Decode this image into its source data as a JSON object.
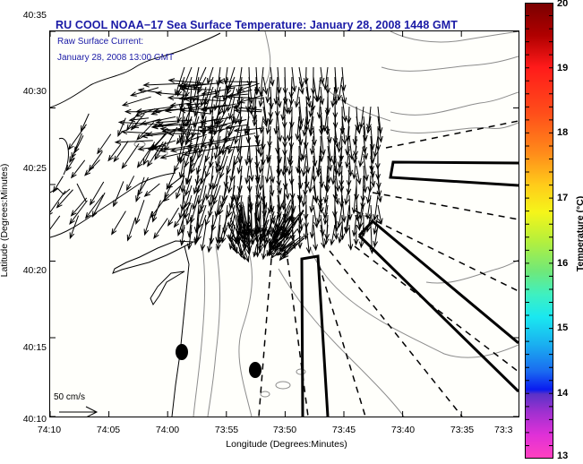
{
  "title": "RU COOL  NOAA−17  Sea Surface Temperature:  January 28, 2008 1448 GMT",
  "annotation": {
    "line1": "Raw Surface Current:",
    "line2": "January 28, 2008 13:00 GMT"
  },
  "scale_arrow": {
    "label": "50 cm/s",
    "value_cm_s": 50
  },
  "axes": {
    "xlabel": "Longitude (Degrees:Minutes)",
    "ylabel": "Latitude (Degrees:Minutes)",
    "xticks": [
      "74:10",
      "74:05",
      "74:00",
      "73:55",
      "73:50",
      "73:45",
      "73:40",
      "73:35",
      "73:3"
    ],
    "yticks": [
      "40:35",
      "40:30",
      "40:25",
      "40:20",
      "40:15",
      "40:10"
    ]
  },
  "colorbar": {
    "label": "Temperature (°C)",
    "ticks": [
      "20",
      "19",
      "18",
      "17",
      "16",
      "15",
      "14",
      "13"
    ],
    "range": [
      13,
      20
    ]
  },
  "colors": {
    "title": "#1a1aa6",
    "contour": "#8c8c8c",
    "vector": "#000000",
    "background": "#fffffb"
  },
  "features": {
    "markers": [
      {
        "name": "station-1",
        "lon": "73:58.8",
        "lat": "40:14.6"
      },
      {
        "name": "station-2",
        "lon": "73:52.3",
        "lat": "40:13.4"
      }
    ]
  }
}
